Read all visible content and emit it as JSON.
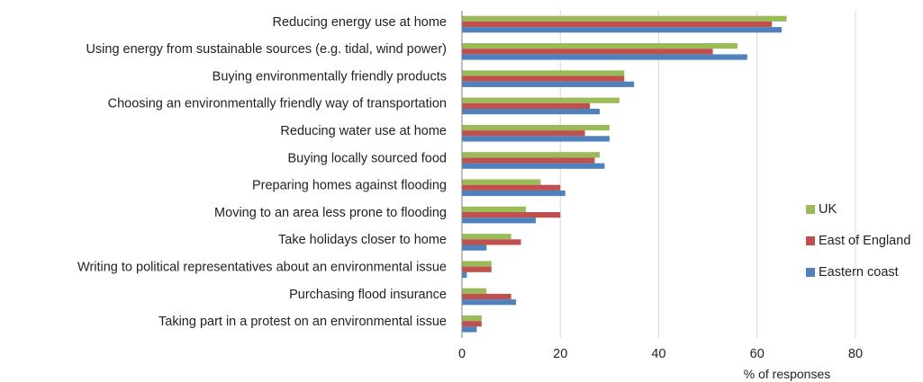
{
  "chart_data": {
    "type": "bar",
    "orientation": "horizontal",
    "categories": [
      "Reducing energy use at home",
      "Using energy from sustainable sources (e.g. tidal, wind power)",
      "Buying environmentally friendly products",
      "Choosing an environmentally friendly way of transportation",
      "Reducing water use at home",
      "Buying locally sourced food",
      "Preparing homes against flooding",
      "Moving to an area less prone to flooding",
      "Take holidays closer to home",
      "Writing to political representatives about an environmental issue",
      "Purchasing flood insurance",
      "Taking part in a protest on an environmental issue"
    ],
    "series": [
      {
        "name": "UK",
        "color": "#9bbb59",
        "values": [
          66,
          56,
          33,
          32,
          30,
          28,
          16,
          13,
          10,
          6,
          5,
          4
        ]
      },
      {
        "name": "East of England",
        "color": "#c0504d",
        "values": [
          63,
          51,
          33,
          26,
          25,
          27,
          20,
          20,
          12,
          6,
          10,
          4
        ]
      },
      {
        "name": "Eastern coast",
        "color": "#4f81bd",
        "values": [
          65,
          58,
          35,
          28,
          30,
          29,
          21,
          15,
          5,
          1,
          11,
          3
        ]
      }
    ],
    "xlabel": "% of responses",
    "ylabel": "",
    "xlim": [
      0,
      80
    ],
    "xticks": [
      0,
      20,
      40,
      60,
      80
    ],
    "grid": true,
    "legend_position": "right"
  }
}
